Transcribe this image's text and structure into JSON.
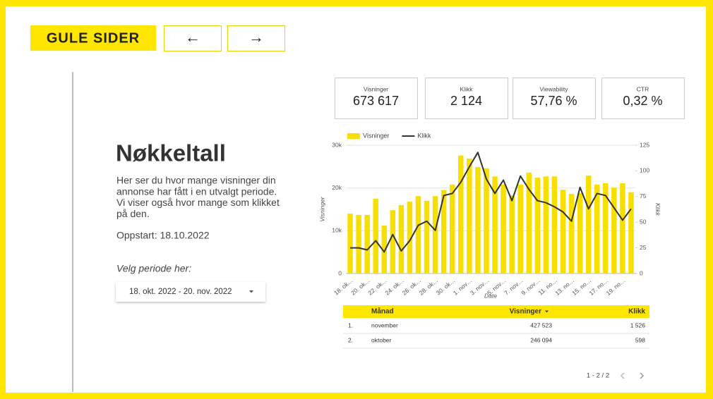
{
  "header": {
    "logo": "GULE SIDER",
    "back": "←",
    "forward": "→"
  },
  "intro": {
    "title": "Nøkkeltall",
    "paragraph_lines": [
      "Her ser du hvor mange visninger din",
      "annonse har fått i en utvalgt periode.",
      "Vi viser også hvor mange som klikket",
      "på den."
    ],
    "start": "Oppstart: 18.10.2022",
    "period_label": "Velg periode her:",
    "period_value": "18. okt. 2022 - 20. nov. 2022"
  },
  "kpis": [
    {
      "label": "Visninger",
      "value": "673 617"
    },
    {
      "label": "Klikk",
      "value": "2 124"
    },
    {
      "label": "Viewability",
      "value": "57,76 %"
    },
    {
      "label": "CTR",
      "value": "0,32 %"
    }
  ],
  "chart_data": {
    "type": "combo",
    "categories": [
      "18. ok…",
      null,
      "20. ok…",
      null,
      "22. ok…",
      null,
      "24. ok…",
      null,
      "26. ok…",
      null,
      "28. ok…",
      null,
      "30. ok…",
      null,
      "1. nov…",
      null,
      "3. nov…",
      null,
      "5. nov…",
      null,
      "7. nov…",
      null,
      "9. nov…",
      null,
      "11. no…",
      null,
      "13. no…",
      null,
      "15. no…",
      null,
      "17. no…",
      null,
      "19. no…",
      null
    ],
    "series": [
      {
        "name": "Visninger",
        "type": "bar",
        "color": "#f7df00",
        "values": [
          14000,
          13700,
          13700,
          17500,
          11200,
          14800,
          16000,
          16800,
          18100,
          17000,
          18100,
          19500,
          20800,
          27600,
          26900,
          24900,
          24600,
          22700,
          20800,
          18300,
          20800,
          23600,
          22400,
          22700,
          22700,
          19600,
          18600,
          18800,
          22900,
          20800,
          21100,
          20100,
          21100,
          19000
        ]
      },
      {
        "name": "Klikk",
        "type": "line",
        "axis": "y2",
        "color": "#333333",
        "values": [
          25,
          25,
          23,
          32,
          21,
          38,
          22,
          32,
          47,
          51,
          42,
          76,
          78,
          89,
          104,
          118,
          92,
          78,
          91,
          71,
          95,
          82,
          71,
          69,
          65,
          60,
          51,
          84,
          63,
          78,
          76,
          64,
          52,
          63
        ]
      }
    ],
    "xlabel": "Date",
    "ylabel": "Visninger",
    "y2label": "Klikk",
    "ylim": [
      0,
      30000
    ],
    "yticks": [
      0,
      {
        "value": 10000,
        "label": "10k"
      },
      {
        "value": 20000,
        "label": "20k"
      },
      {
        "value": 30000,
        "label": "30k"
      }
    ],
    "y2lim": [
      0,
      125
    ],
    "y2ticks": [
      0,
      25,
      50,
      75,
      100,
      125
    ],
    "grid": true,
    "legend": "top-left"
  },
  "table": {
    "columns": [
      "Månad",
      "Visninger",
      "Klikk"
    ],
    "rows": [
      [
        "1.",
        "november",
        "427 523",
        "1 526"
      ],
      [
        "2.",
        "oktober",
        "246 094",
        "598"
      ]
    ]
  },
  "pagination": "1 - 2 / 2"
}
